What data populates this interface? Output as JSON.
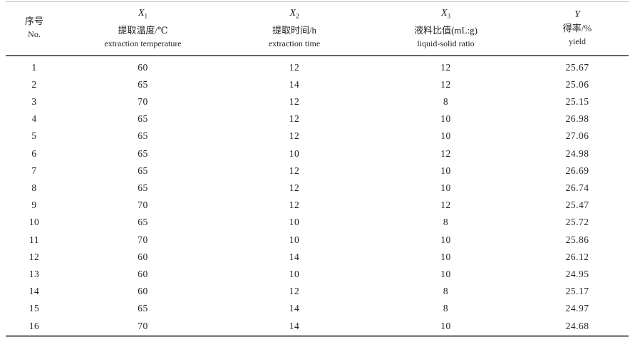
{
  "table": {
    "headers": [
      {
        "symbol": "",
        "sub": "",
        "zh": "序号",
        "en": "No."
      },
      {
        "symbol": "X",
        "sub": "1",
        "zh": "提取温度/℃",
        "en": "extraction temperature"
      },
      {
        "symbol": "X",
        "sub": "2",
        "zh": "提取时间/h",
        "en": "extraction time"
      },
      {
        "symbol": "X",
        "sub": "3",
        "zh": "液料比值(mL:g)",
        "en": "liquid-solid ratio"
      },
      {
        "symbol": "Y",
        "sub": "",
        "zh": "得率/%",
        "en": "yield"
      }
    ],
    "rows": [
      [
        "1",
        "60",
        "12",
        "12",
        "25.67"
      ],
      [
        "2",
        "65",
        "14",
        "12",
        "25.06"
      ],
      [
        "3",
        "70",
        "12",
        "8",
        "25.15"
      ],
      [
        "4",
        "65",
        "12",
        "10",
        "26.98"
      ],
      [
        "5",
        "65",
        "12",
        "10",
        "27.06"
      ],
      [
        "6",
        "65",
        "10",
        "12",
        "24.98"
      ],
      [
        "7",
        "65",
        "12",
        "10",
        "26.69"
      ],
      [
        "8",
        "65",
        "12",
        "10",
        "26.74"
      ],
      [
        "9",
        "70",
        "12",
        "12",
        "25.47"
      ],
      [
        "10",
        "65",
        "10",
        "8",
        "25.72"
      ],
      [
        "11",
        "70",
        "10",
        "10",
        "25.86"
      ],
      [
        "12",
        "60",
        "14",
        "10",
        "26.12"
      ],
      [
        "13",
        "60",
        "10",
        "10",
        "24.95"
      ],
      [
        "14",
        "60",
        "12",
        "8",
        "25.17"
      ],
      [
        "15",
        "65",
        "14",
        "8",
        "24.97"
      ],
      [
        "16",
        "70",
        "14",
        "10",
        "24.68"
      ]
    ]
  }
}
